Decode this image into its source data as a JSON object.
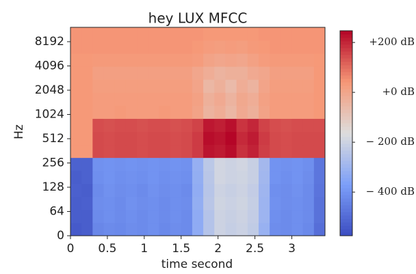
{
  "chart_data": {
    "type": "heatmap",
    "title": "hey LUX MFCC",
    "x_label": "time second",
    "y_label": "Hz",
    "xlim": [
      0,
      3.45
    ],
    "xticks": [
      0,
      0.5,
      1,
      1.5,
      2,
      2.5,
      3
    ],
    "yticks": [
      0,
      64,
      128,
      256,
      512,
      1024,
      2048,
      4096,
      8192
    ],
    "y_scale": "ordinal",
    "colormap": "coolwarm",
    "zlim": [
      -575,
      247
    ],
    "zticks": [
      {
        "value": 200,
        "label": "+200 dB"
      },
      {
        "value": 0,
        "label": "+0 dB"
      },
      {
        "value": -200,
        "label": "− 200 dB"
      },
      {
        "value": -400,
        "label": "− 400 dB"
      }
    ],
    "z": [
      [
        -540,
        -530,
        -430,
        -420,
        -425,
        -415,
        -420,
        -410,
        -425,
        -415,
        -420,
        -330,
        -250,
        -200,
        -215,
        -205,
        -225,
        -310,
        -415,
        -420,
        -410,
        -425,
        -490
      ],
      [
        -530,
        -530,
        -420,
        -410,
        -420,
        -410,
        -420,
        -410,
        -420,
        -410,
        -420,
        -330,
        -250,
        -200,
        -210,
        -200,
        -220,
        -300,
        -410,
        -420,
        -410,
        -420,
        -480
      ],
      [
        -530,
        -525,
        -415,
        -410,
        -420,
        -405,
        -415,
        -410,
        -420,
        -410,
        -415,
        -320,
        -240,
        -195,
        -205,
        -195,
        -215,
        -300,
        -405,
        -415,
        -410,
        -420,
        -480
      ],
      [
        -525,
        -530,
        -420,
        -405,
        -415,
        -410,
        -420,
        -405,
        -415,
        -410,
        -420,
        -325,
        -245,
        -200,
        -210,
        -200,
        -220,
        -295,
        -410,
        -415,
        -405,
        -420,
        -475
      ],
      [
        -530,
        -520,
        -410,
        -400,
        -410,
        -405,
        -410,
        -400,
        -410,
        -405,
        -410,
        -320,
        -240,
        -190,
        -200,
        -195,
        -210,
        -290,
        -400,
        -410,
        -400,
        -415,
        -470
      ],
      [
        -520,
        -520,
        -405,
        -400,
        -405,
        -400,
        -405,
        -400,
        -405,
        -400,
        -405,
        -315,
        -235,
        -190,
        -200,
        -190,
        -210,
        -285,
        -400,
        -405,
        -400,
        -410,
        -470
      ],
      [
        40,
        40,
        150,
        145,
        150,
        150,
        145,
        150,
        150,
        145,
        150,
        170,
        225,
        215,
        235,
        185,
        205,
        165,
        150,
        145,
        150,
        150,
        150
      ],
      [
        40,
        40,
        150,
        145,
        150,
        150,
        145,
        150,
        150,
        145,
        150,
        170,
        235,
        225,
        245,
        195,
        215,
        170,
        150,
        145,
        150,
        150,
        150
      ],
      [
        40,
        40,
        145,
        140,
        145,
        145,
        140,
        145,
        145,
        140,
        145,
        160,
        220,
        210,
        230,
        180,
        200,
        160,
        145,
        140,
        145,
        145,
        145
      ],
      [
        40,
        40,
        30,
        30,
        35,
        30,
        30,
        30,
        35,
        30,
        30,
        10,
        -40,
        -20,
        -50,
        -10,
        -30,
        10,
        30,
        30,
        30,
        30,
        40
      ],
      [
        40,
        40,
        30,
        30,
        30,
        30,
        30,
        30,
        30,
        30,
        30,
        15,
        -30,
        -10,
        -40,
        -5,
        -20,
        15,
        30,
        30,
        30,
        30,
        40
      ],
      [
        40,
        40,
        25,
        25,
        25,
        25,
        25,
        25,
        25,
        25,
        25,
        5,
        -50,
        -30,
        -60,
        -20,
        -40,
        5,
        25,
        25,
        25,
        25,
        40
      ],
      [
        40,
        40,
        20,
        20,
        20,
        20,
        20,
        20,
        20,
        20,
        20,
        0,
        -20,
        -40,
        -30,
        -30,
        -10,
        0,
        20,
        20,
        20,
        20,
        40
      ],
      [
        40,
        40,
        35,
        35,
        35,
        35,
        35,
        35,
        35,
        35,
        35,
        30,
        10,
        0,
        5,
        0,
        15,
        30,
        35,
        35,
        35,
        35,
        40
      ],
      [
        45,
        45,
        45,
        45,
        45,
        45,
        45,
        45,
        45,
        45,
        45,
        40,
        30,
        25,
        30,
        25,
        35,
        40,
        45,
        45,
        45,
        45,
        45
      ],
      [
        45,
        45,
        45,
        45,
        45,
        45,
        45,
        45,
        45,
        45,
        45,
        45,
        40,
        40,
        40,
        40,
        40,
        45,
        45,
        45,
        45,
        45,
        45
      ]
    ]
  }
}
